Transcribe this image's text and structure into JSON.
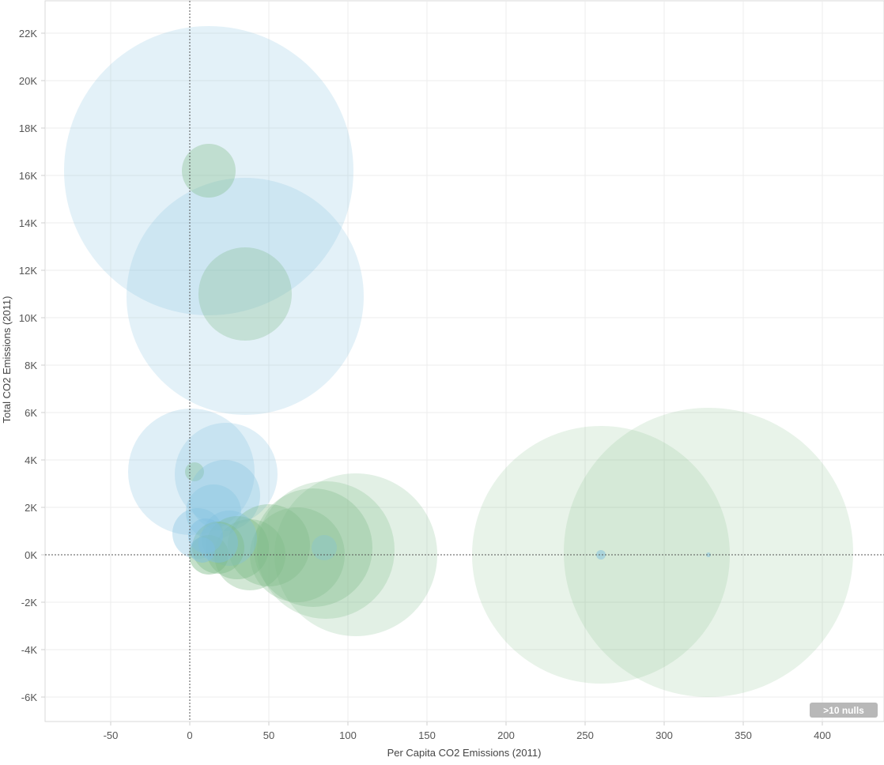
{
  "chart_data": {
    "type": "scatter",
    "title": "",
    "xlabel": "Per Capita CO2 Emissions (2011)",
    "ylabel": "Total CO2 Emissions (2011)",
    "xlim": [
      -90,
      435
    ],
    "ylim": [
      -7000,
      23000
    ],
    "x_ticks": [
      -50,
      0,
      50,
      100,
      150,
      200,
      250,
      300,
      350,
      400
    ],
    "x_tick_labels": [
      "-50",
      "0",
      "50",
      "100",
      "150",
      "200",
      "250",
      "300",
      "350",
      "400"
    ],
    "y_ticks": [
      22000,
      20000,
      18000,
      16000,
      14000,
      12000,
      10000,
      8000,
      6000,
      4000,
      2000,
      0,
      -2000,
      -4000,
      -6000
    ],
    "y_tick_labels": [
      "22K",
      "20K",
      "18K",
      "16K",
      "14K",
      "12K",
      "10K",
      "8K",
      "6K",
      "4K",
      "2K",
      "0K",
      "-2K",
      "-4K",
      "-6K"
    ],
    "grid": true,
    "reference_lines": {
      "x": 0,
      "y": 0,
      "style": "dotted"
    },
    "null_indicator": ">10 nulls",
    "colors": {
      "blue": "#7fbfdf",
      "green": "#7dbb87"
    },
    "points": [
      {
        "x": 12,
        "y": 16200,
        "size": 183,
        "color": "blue",
        "opacity": 0.22
      },
      {
        "x": 35,
        "y": 10900,
        "size": 150,
        "color": "blue",
        "opacity": 0.22
      },
      {
        "x": 12,
        "y": 16200,
        "size": 34,
        "color": "green",
        "opacity": 0.35
      },
      {
        "x": 35,
        "y": 11000,
        "size": 59,
        "color": "green",
        "opacity": 0.3
      },
      {
        "x": 1,
        "y": 3500,
        "size": 80,
        "color": "blue",
        "opacity": 0.25
      },
      {
        "x": 23,
        "y": 3400,
        "size": 65,
        "color": "blue",
        "opacity": 0.25
      },
      {
        "x": 3,
        "y": 3500,
        "size": 12,
        "color": "green",
        "opacity": 0.35
      },
      {
        "x": 22,
        "y": 2500,
        "size": 45,
        "color": "blue",
        "opacity": 0.3
      },
      {
        "x": 15,
        "y": 1800,
        "size": 35,
        "color": "blue",
        "opacity": 0.3
      },
      {
        "x": 5,
        "y": 900,
        "size": 32,
        "color": "blue",
        "opacity": 0.35
      },
      {
        "x": 260,
        "y": 0,
        "size": 163,
        "color": "green",
        "opacity": 0.18
      },
      {
        "x": 328,
        "y": 100,
        "size": 183,
        "color": "green",
        "opacity": 0.18
      },
      {
        "x": 105,
        "y": 0,
        "size": 103,
        "color": "green",
        "opacity": 0.22
      },
      {
        "x": 86,
        "y": 200,
        "size": 87,
        "color": "green",
        "opacity": 0.25
      },
      {
        "x": 78,
        "y": 300,
        "size": 75,
        "color": "green",
        "opacity": 0.3
      },
      {
        "x": 68,
        "y": 0,
        "size": 60,
        "color": "green",
        "opacity": 0.3
      },
      {
        "x": 50,
        "y": 400,
        "size": 52,
        "color": "green",
        "opacity": 0.35
      },
      {
        "x": 38,
        "y": 0,
        "size": 45,
        "color": "green",
        "opacity": 0.35
      },
      {
        "x": 30,
        "y": 300,
        "size": 40,
        "color": "green",
        "opacity": 0.4
      },
      {
        "x": 25,
        "y": 700,
        "size": 35,
        "color": "blue",
        "opacity": 0.35
      },
      {
        "x": 18,
        "y": 300,
        "size": 33,
        "color": "green",
        "opacity": 0.4
      },
      {
        "x": 12,
        "y": 0,
        "size": 25,
        "color": "green",
        "opacity": 0.45
      },
      {
        "x": 10,
        "y": 800,
        "size": 22,
        "color": "blue",
        "opacity": 0.45
      },
      {
        "x": 18,
        "y": 500,
        "size": 25,
        "color": "blue",
        "opacity": 0.45
      },
      {
        "x": 8,
        "y": 200,
        "size": 16,
        "color": "blue",
        "opacity": 0.5
      },
      {
        "x": 85,
        "y": 300,
        "size": 16,
        "color": "blue",
        "opacity": 0.3
      },
      {
        "x": 260,
        "y": 0,
        "size": 6,
        "color": "blue",
        "opacity": 0.5
      },
      {
        "x": 328,
        "y": 0,
        "size": 3,
        "color": "blue",
        "opacity": 0.5
      }
    ]
  }
}
